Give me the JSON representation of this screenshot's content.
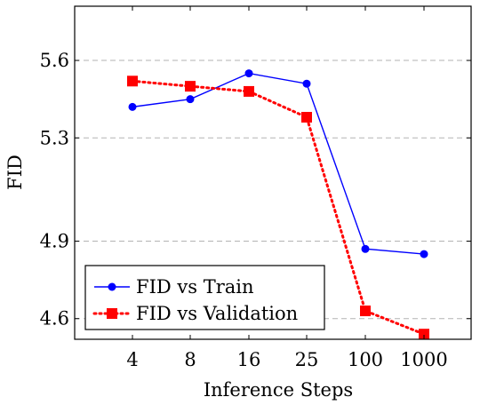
{
  "chart_data": {
    "type": "line",
    "title": "",
    "xlabel": "Inference Steps",
    "ylabel": "FID",
    "categories": [
      "4",
      "8",
      "16",
      "25",
      "100",
      "1000"
    ],
    "ylim": [
      4.52,
      5.81
    ],
    "yticks": [
      "4.6",
      "4.9",
      "5.3",
      "5.6"
    ],
    "ytick_values": [
      4.6,
      4.9,
      5.3,
      5.6
    ],
    "grid": "horizontal dashed",
    "legend_position": "bottom-left",
    "series": [
      {
        "name": "FID vs Train",
        "values": [
          5.42,
          5.45,
          5.55,
          5.51,
          4.87,
          4.85
        ],
        "color": "#0000ff",
        "marker": "circle",
        "line_style": "solid"
      },
      {
        "name": "FID vs Validation",
        "values": [
          5.52,
          5.5,
          5.48,
          5.38,
          4.63,
          4.54
        ],
        "color": "#ff0000",
        "marker": "square",
        "line_style": "dotted"
      }
    ]
  }
}
